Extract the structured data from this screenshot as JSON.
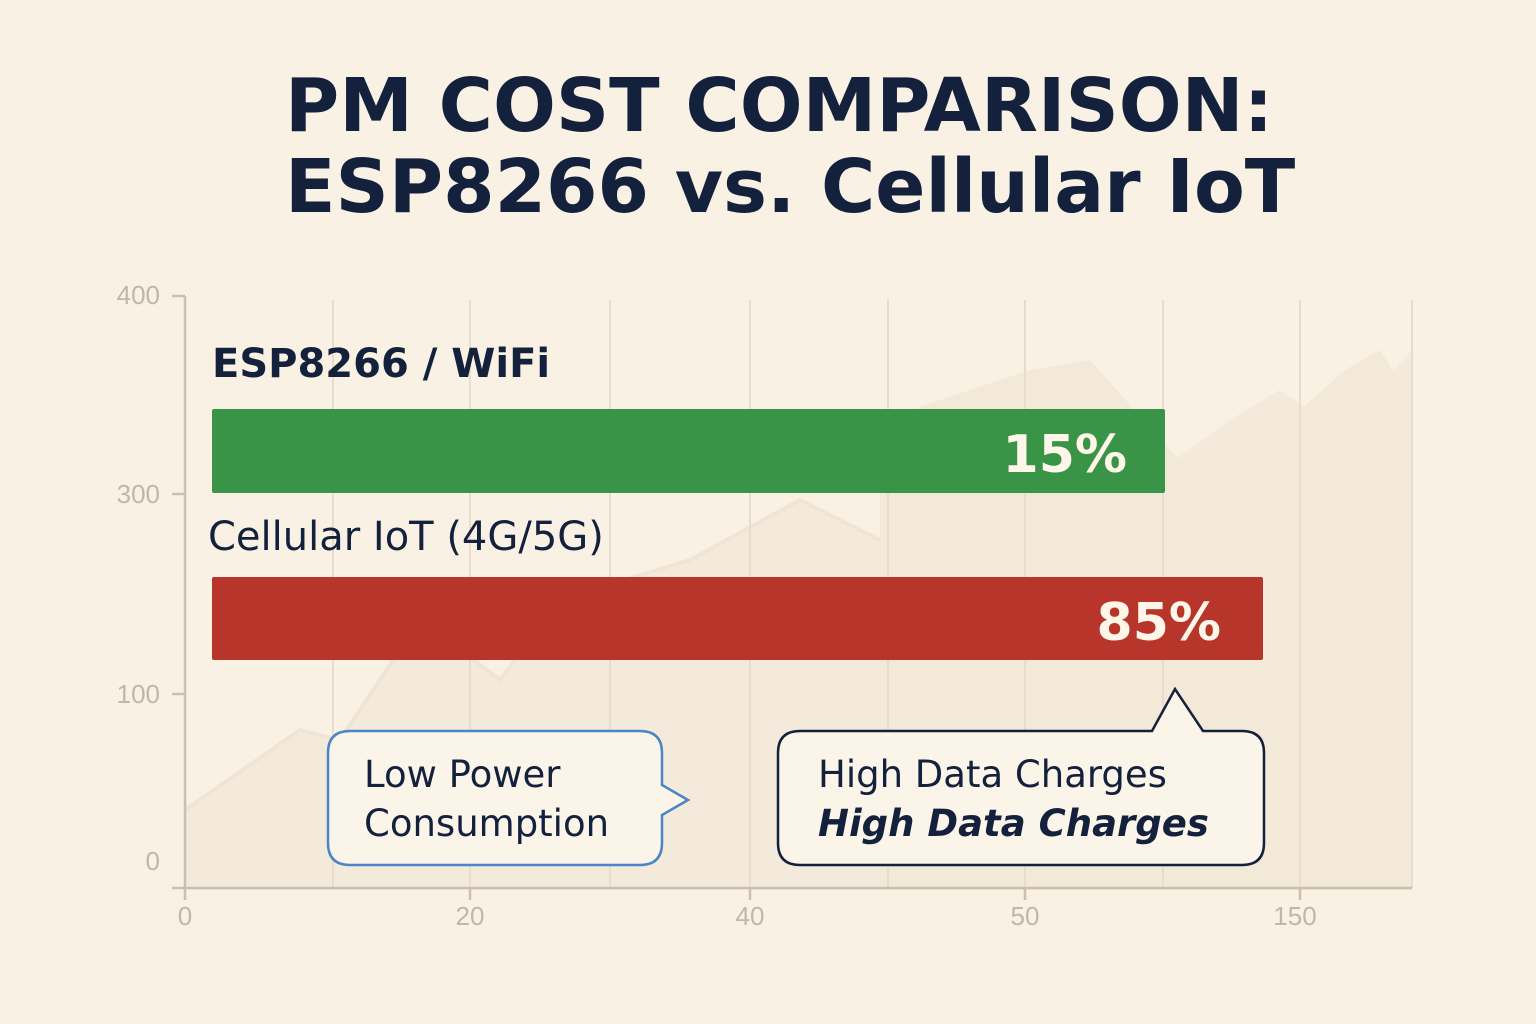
{
  "chart_data": {
    "type": "bar",
    "orientation": "horizontal",
    "title": "PM COST COMPARISON: ESP8266 vs. Cellular IoT",
    "title_lines": [
      "PM COST COMPARISON:",
      "ESP8266 vs. Cellular IoT"
    ],
    "categories": [
      "ESP8266 / WiFi",
      "Cellular IoT (4G/5G)"
    ],
    "values": [
      15,
      85
    ],
    "value_labels": [
      "15%",
      "85%"
    ],
    "colors": {
      "esp8266": "#3a9447",
      "cellular": "#b8352b",
      "title": "#14213d",
      "background": "#f9f1e4"
    },
    "y_ticks": [
      "400",
      "300",
      "100",
      "0"
    ],
    "x_ticks": [
      "0",
      "20",
      "40",
      "50",
      "150"
    ],
    "annotations": [
      {
        "target": "ESP8266 / WiFi",
        "lines": [
          "Low Power",
          "Consumption"
        ],
        "border_color": "#4a86c5"
      },
      {
        "target": "Cellular IoT (4G/5G)",
        "lines": [
          "High Data Charges",
          "High Data Charges"
        ],
        "border_color": "#14213d"
      }
    ],
    "grid": true,
    "legend": "none"
  }
}
